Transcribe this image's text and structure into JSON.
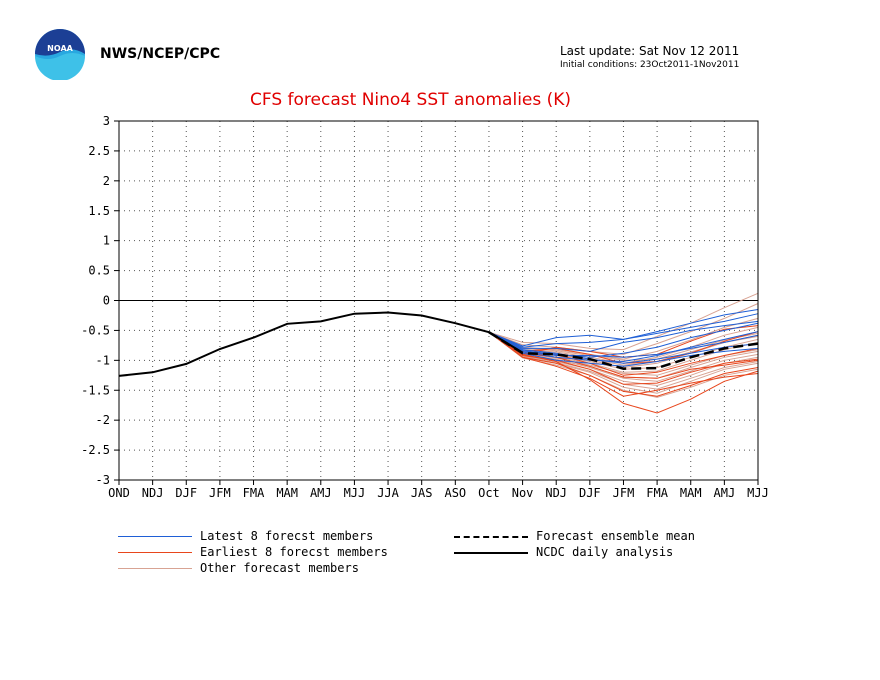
{
  "header": {
    "org": "NWS/NCEP/CPC",
    "last_update": "Last update: Sat Nov 12 2011",
    "initial_conditions": "Initial conditions: 23Oct2011-1Nov2011",
    "logo_text": "NOAA"
  },
  "colors": {
    "latest": "#1f5fd6",
    "earliest": "#e8461c",
    "other": "#d8a393",
    "analysis": "#000000",
    "title": "#e00000"
  },
  "chart_data": {
    "type": "line",
    "title": "CFS forecast Nino4 SST anomalies (K)",
    "x_categories": [
      "OND",
      "NDJ",
      "DJF",
      "JFM",
      "FMA",
      "MAM",
      "AMJ",
      "MJJ",
      "JJA",
      "JAS",
      "ASO",
      "Oct",
      "Nov",
      "NDJ",
      "DJF",
      "JFM",
      "FMA",
      "MAM",
      "AMJ",
      "MJJ"
    ],
    "ylim": [
      -3,
      3
    ],
    "yticks": [
      "3",
      "2.5",
      "2",
      "1.5",
      "1",
      "0.5",
      "0",
      "-0.5",
      "-1",
      "-1.5",
      "-2",
      "-2.5",
      "-3"
    ],
    "ytick_values": [
      3,
      2.5,
      2,
      1.5,
      1,
      0.5,
      0,
      -0.5,
      -1,
      -1.5,
      -2,
      -2.5,
      -3
    ],
    "grid": true,
    "analysis": {
      "name": "NCDC daily analysis",
      "x": [
        0,
        1,
        2,
        3,
        4,
        5,
        6,
        7,
        8,
        9,
        10,
        11,
        11.5,
        12
      ],
      "values": [
        -1.26,
        -1.2,
        -1.06,
        -0.81,
        -0.62,
        -0.39,
        -0.35,
        -0.22,
        -0.2,
        -0.25,
        -0.38,
        -0.53,
        -0.7,
        -0.87
      ]
    },
    "ensemble_mean": {
      "name": "Forecast ensemble mean",
      "x": [
        11,
        12,
        13,
        14,
        15,
        16,
        17,
        18,
        19
      ],
      "values": [
        -0.53,
        -0.88,
        -0.9,
        -0.98,
        -1.14,
        -1.13,
        -0.95,
        -0.8,
        -0.72
      ]
    },
    "latest_members": {
      "name": "Latest 8 forecst members",
      "x": [
        11,
        12,
        13,
        14,
        15,
        16,
        17,
        18,
        19
      ],
      "series": [
        [
          -0.53,
          -0.76,
          -0.62,
          -0.58,
          -0.65,
          -0.52,
          -0.38,
          -0.24,
          -0.15
        ],
        [
          -0.53,
          -0.78,
          -0.72,
          -0.7,
          -0.65,
          -0.55,
          -0.45,
          -0.35,
          -0.22
        ],
        [
          -0.53,
          -0.8,
          -0.8,
          -0.85,
          -0.7,
          -0.62,
          -0.5,
          -0.42,
          -0.35
        ],
        [
          -0.53,
          -0.84,
          -0.9,
          -0.95,
          -0.88,
          -0.78,
          -0.62,
          -0.5,
          -0.38
        ],
        [
          -0.53,
          -0.86,
          -0.95,
          -1.0,
          -1.02,
          -0.92,
          -0.78,
          -0.65,
          -0.52
        ],
        [
          -0.53,
          -0.82,
          -0.88,
          -0.98,
          -1.05,
          -0.98,
          -0.88,
          -0.78,
          -0.72
        ],
        [
          -0.53,
          -0.88,
          -1.0,
          -1.05,
          -1.1,
          -1.02,
          -0.92,
          -0.85,
          -0.8
        ],
        [
          -0.53,
          -0.84,
          -0.92,
          -0.92,
          -0.95,
          -0.9,
          -0.8,
          -0.7,
          -0.58
        ]
      ]
    },
    "earliest_members": {
      "name": "Earliest 8 forecst members",
      "x": [
        11,
        12,
        13,
        14,
        15,
        16,
        17,
        18,
        19
      ],
      "series": [
        [
          -0.53,
          -0.9,
          -0.78,
          -0.85,
          -0.95,
          -0.9,
          -0.68,
          -0.48,
          -0.42
        ],
        [
          -0.53,
          -0.85,
          -0.8,
          -0.9,
          -1.05,
          -1.02,
          -0.88,
          -0.68,
          -0.52
        ],
        [
          -0.53,
          -0.88,
          -0.9,
          -1.05,
          -1.25,
          -1.2,
          -1.05,
          -0.92,
          -0.8
        ],
        [
          -0.53,
          -0.92,
          -1.0,
          -1.15,
          -1.4,
          -1.38,
          -1.2,
          -1.05,
          -0.98
        ],
        [
          -0.53,
          -0.95,
          -1.05,
          -1.25,
          -1.52,
          -1.6,
          -1.42,
          -1.22,
          -1.12
        ],
        [
          -0.53,
          -0.9,
          -1.02,
          -1.32,
          -1.72,
          -1.88,
          -1.65,
          -1.35,
          -1.18
        ],
        [
          -0.53,
          -0.95,
          -1.1,
          -1.3,
          -1.6,
          -1.5,
          -1.38,
          -1.28,
          -1.22
        ],
        [
          -0.53,
          -0.88,
          -0.95,
          -1.1,
          -1.28,
          -1.3,
          -1.15,
          -1.08,
          -1.0
        ]
      ]
    },
    "other_members": {
      "name": "Other forecast members",
      "x": [
        11,
        12,
        13,
        14,
        15,
        16,
        17,
        18,
        19
      ],
      "series": [
        [
          -0.53,
          -0.7,
          -0.72,
          -0.8,
          -0.82,
          -0.6,
          -0.38,
          -0.12,
          0.12
        ],
        [
          -0.53,
          -0.74,
          -0.78,
          -0.85,
          -0.9,
          -0.72,
          -0.52,
          -0.3,
          -0.05
        ],
        [
          -0.53,
          -0.78,
          -0.82,
          -0.9,
          -0.98,
          -0.85,
          -0.66,
          -0.45,
          -0.3
        ],
        [
          -0.53,
          -0.82,
          -0.86,
          -0.95,
          -1.05,
          -0.95,
          -0.78,
          -0.58,
          -0.45
        ],
        [
          -0.53,
          -0.85,
          -0.9,
          -1.0,
          -1.12,
          -1.05,
          -0.88,
          -0.7,
          -0.58
        ],
        [
          -0.53,
          -0.88,
          -0.95,
          -1.05,
          -1.2,
          -1.18,
          -1.0,
          -0.82,
          -0.7
        ],
        [
          -0.53,
          -0.9,
          -1.0,
          -1.1,
          -1.28,
          -1.3,
          -1.12,
          -0.95,
          -0.85
        ],
        [
          -0.53,
          -0.92,
          -1.02,
          -1.15,
          -1.35,
          -1.42,
          -1.25,
          -1.05,
          -0.95
        ],
        [
          -0.53,
          -0.95,
          -1.05,
          -1.2,
          -1.45,
          -1.55,
          -1.35,
          -1.15,
          -1.05
        ],
        [
          -0.53,
          -0.88,
          -0.96,
          -1.08,
          -1.22,
          -1.25,
          -1.08,
          -0.92,
          -0.82
        ],
        [
          -0.53,
          -0.8,
          -0.84,
          -0.92,
          -1.0,
          -0.98,
          -0.82,
          -0.66,
          -0.55
        ],
        [
          -0.53,
          -0.86,
          -0.92,
          -1.02,
          -1.15,
          -1.12,
          -0.95,
          -0.78,
          -0.65
        ],
        [
          -0.53,
          -0.93,
          -1.04,
          -1.18,
          -1.4,
          -1.48,
          -1.3,
          -1.12,
          -1.02
        ],
        [
          -0.53,
          -0.84,
          -0.9,
          -0.98,
          -1.08,
          -1.02,
          -0.86,
          -0.7,
          -0.6
        ],
        [
          -0.53,
          -0.9,
          -0.98,
          -1.12,
          -1.3,
          -1.35,
          -1.18,
          -1.0,
          -0.9
        ],
        [
          -0.53,
          -0.96,
          -1.08,
          -1.25,
          -1.5,
          -1.62,
          -1.45,
          -1.25,
          -1.15
        ]
      ]
    },
    "legend": [
      {
        "label": "Latest 8 forecst members",
        "style": "latest"
      },
      {
        "label": "Earliest 8 forecst members",
        "style": "earliest"
      },
      {
        "label": "Other forecast members",
        "style": "other"
      },
      {
        "label": "Forecast ensemble mean",
        "style": "mean"
      },
      {
        "label": "NCDC daily analysis",
        "style": "analysis"
      }
    ]
  }
}
